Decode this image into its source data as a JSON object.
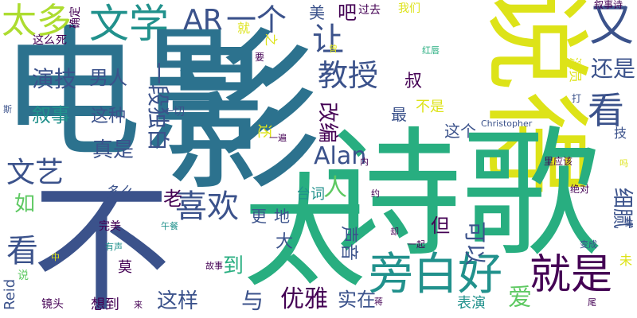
{
  "palette": {
    "dark_purple": "#440154",
    "indigo": "#3b528b",
    "blue": "#2c728e",
    "teal": "#21918c",
    "green": "#28ae80",
    "lime": "#5ec962",
    "yellow_green": "#addc30",
    "yellow": "#dde318"
  },
  "words": [
    {
      "id": "dianying",
      "text": "电影",
      "color": "#2c728e"
    },
    {
      "id": "bai",
      "text": "不",
      "color": "#3b528b"
    },
    {
      "id": "ying",
      "text": "影",
      "color": "#2c728e"
    },
    {
      "id": "shuohao",
      "text": "说得",
      "color": "#dde318"
    },
    {
      "id": "shige",
      "text": "诗歌",
      "color": "#28ae80"
    },
    {
      "id": "tai",
      "text": "太",
      "color": "#28ae80"
    },
    {
      "id": "pangbaihao",
      "text": "旁白好",
      "color": "#21918c"
    },
    {
      "id": "jiushi",
      "text": "就是",
      "color": "#440154"
    },
    {
      "id": "taiduo",
      "text": "太多",
      "color": "#addc30"
    },
    {
      "id": "wenxue",
      "text": "文学",
      "color": "#21918c"
    },
    {
      "id": "ar",
      "text": "AR",
      "color": "#3b528b"
    },
    {
      "id": "yige",
      "text": "一个",
      "color": "#3b528b"
    },
    {
      "id": "you",
      "text": "又",
      "color": "#3b528b"
    },
    {
      "id": "kan1",
      "text": "看",
      "color": "#3b528b"
    },
    {
      "id": "huanshi",
      "text": "还是",
      "color": "#3b528b"
    },
    {
      "id": "rang",
      "text": "让",
      "color": "#3b528b"
    },
    {
      "id": "jiaoshou",
      "text": "教授",
      "color": "#3b528b"
    },
    {
      "id": "yanji",
      "text": "演技",
      "color": "#3b528b"
    },
    {
      "id": "nanren",
      "text": "男人",
      "color": "#3b528b"
    },
    {
      "id": "xushi",
      "text": "叙事",
      "color": "#21918c"
    },
    {
      "id": "zhezhong",
      "text": "这种",
      "color": "#3b528b"
    },
    {
      "id": "wenyi",
      "text": "文艺",
      "color": "#3b528b"
    },
    {
      "id": "zhenshi",
      "text": "真是",
      "color": "#3b528b"
    },
    {
      "id": "alan",
      "text": "Alan",
      "color": "#3b528b"
    },
    {
      "id": "xihuan",
      "text": "喜欢",
      "color": "#3b528b"
    },
    {
      "id": "kan2",
      "text": "看",
      "color": "#3b528b"
    },
    {
      "id": "youya",
      "text": "优雅",
      "color": "#440154"
    },
    {
      "id": "shizai",
      "text": "实在",
      "color": "#3b528b"
    },
    {
      "id": "zheyang",
      "text": "这样",
      "color": "#3b528b"
    },
    {
      "id": "ai",
      "text": "爱",
      "color": "#5ec962"
    },
    {
      "id": "ren",
      "text": "人",
      "color": "#5ec962"
    },
    {
      "id": "duliubai",
      "text": "一段独白",
      "color": "#3b528b"
    },
    {
      "id": "gaibian",
      "text": "改编",
      "color": "#440154"
    },
    {
      "id": "keyi",
      "text": "可以",
      "color": "#3b528b"
    },
    {
      "id": "xirang",
      "text": "细腻",
      "color": "#3b528b"
    },
    {
      "id": "shengyin",
      "text": "声音",
      "color": "#3b528b"
    },
    {
      "id": "taici",
      "text": "台词",
      "color": "#21918c"
    },
    {
      "id": "biaoyan",
      "text": "表演",
      "color": "#21918c"
    },
    {
      "id": "lao",
      "text": "老",
      "color": "#440154"
    },
    {
      "id": "shu",
      "text": "叔",
      "color": "#440154"
    },
    {
      "id": "dan",
      "text": "但",
      "color": "#440154"
    },
    {
      "id": "ru",
      "text": "如",
      "color": "#5ec962"
    },
    {
      "id": "da",
      "text": "大",
      "color": "#3b528b"
    },
    {
      "id": "yu",
      "text": "与",
      "color": "#3b528b"
    },
    {
      "id": "dao",
      "text": "到",
      "color": "#28ae80"
    },
    {
      "id": "geng",
      "text": "更",
      "color": "#3b528b"
    },
    {
      "id": "di",
      "text": "地",
      "color": "#3b528b"
    },
    {
      "id": "duome",
      "text": "多么",
      "color": "#3b528b"
    },
    {
      "id": "zuiyou",
      "text": "最",
      "color": "#3b528b"
    },
    {
      "id": "bushi",
      "text": "不是",
      "color": "#dde318"
    },
    {
      "id": "zhege",
      "text": "这个",
      "color": "#3b528b"
    },
    {
      "id": "huan",
      "text": "还",
      "color": "#dde318"
    },
    {
      "id": "mei",
      "text": "美",
      "color": "#3b528b"
    },
    {
      "id": "ba",
      "text": "吧",
      "color": "#440154"
    },
    {
      "id": "guoqu",
      "text": "过去",
      "color": "#440154"
    },
    {
      "id": "women",
      "text": "我们",
      "color": "#dde318"
    },
    {
      "id": "xushishi",
      "text": "叙事诗",
      "color": "#440154"
    },
    {
      "id": "quequ",
      "text": "确定",
      "color": "#440154"
    },
    {
      "id": "zheme",
      "text": "这么",
      "color": "#440154"
    },
    {
      "id": "si",
      "text": "死",
      "color": "#440154"
    },
    {
      "id": "jiu",
      "text": "就",
      "color": "#dde318"
    },
    {
      "id": "zhi",
      "text": "之",
      "color": "#dde318"
    },
    {
      "id": "yao",
      "text": "要",
      "color": "#440154"
    },
    {
      "id": "da2",
      "text": "打",
      "color": "#3b528b"
    },
    {
      "id": "yiqie",
      "text": "一切",
      "color": "#3b528b"
    },
    {
      "id": "christopher",
      "text": "Christopher",
      "color": "#3b528b"
    },
    {
      "id": "yibian",
      "text": "一遍",
      "color": "#440154"
    },
    {
      "id": "nei",
      "text": "内",
      "color": "#440154"
    },
    {
      "id": "liyinggai",
      "text": "里应该",
      "color": "#440154"
    },
    {
      "id": "jueduei",
      "text": "绝对",
      "color": "#440154"
    },
    {
      "id": "yue",
      "text": "约",
      "color": "#440154"
    },
    {
      "id": "wucan",
      "text": "午餐",
      "color": "#21918c"
    },
    {
      "id": "wanmei",
      "text": "完美",
      "color": "#440154"
    },
    {
      "id": "yousheng",
      "text": "有声",
      "color": "#21918c"
    },
    {
      "id": "gushi",
      "text": "故事",
      "color": "#440154"
    },
    {
      "id": "mo",
      "text": "莫",
      "color": "#440154"
    },
    {
      "id": "xiangdao",
      "text": "想到",
      "color": "#440154"
    },
    {
      "id": "jingtou",
      "text": "镜头",
      "color": "#440154"
    },
    {
      "id": "lai",
      "text": "来",
      "color": "#440154"
    },
    {
      "id": "reid",
      "text": "Reid",
      "color": "#3b528b"
    },
    {
      "id": "shuo",
      "text": "说",
      "color": "#5ec962"
    },
    {
      "id": "zhong",
      "text": "中",
      "color": "#dde318"
    },
    {
      "id": "yiqi",
      "text": "一起",
      "color": "#440154"
    },
    {
      "id": "bianc",
      "text": "变成",
      "color": "#3b528b"
    },
    {
      "id": "wei",
      "text": "未",
      "color": "#dde318"
    },
    {
      "id": "ma",
      "text": "吗",
      "color": "#dde318"
    },
    {
      "id": "si2",
      "text": "斯",
      "color": "#3b528b"
    },
    {
      "id": "hongchun",
      "text": "红唇",
      "color": "#28ae80"
    },
    {
      "id": "yanyuan",
      "text": "演员",
      "color": "#dde318"
    },
    {
      "id": "ji",
      "text": "技",
      "color": "#3b528b"
    },
    {
      "id": "que",
      "text": "却",
      "color": "#440154"
    },
    {
      "id": "xu2",
      "text": "做",
      "color": "#3b528b"
    },
    {
      "id": "ceng",
      "text": "曾",
      "color": "#dde318"
    },
    {
      "id": "jiang",
      "text": "蒋",
      "color": "#440154"
    },
    {
      "id": "wei2",
      "text": "尾",
      "color": "#440154"
    }
  ]
}
